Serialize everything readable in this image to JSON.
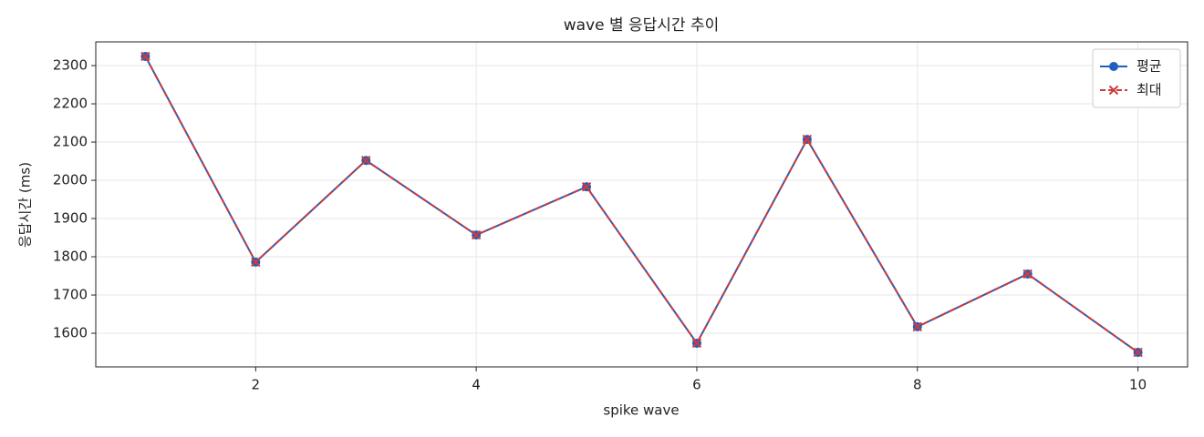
{
  "chart_data": {
    "type": "line",
    "title": "wave 별 응답시간 추이",
    "x_label": "spike wave",
    "y_label": "응답시간 (ms)",
    "x": [
      1,
      2,
      3,
      4,
      5,
      6,
      7,
      8,
      9,
      10
    ],
    "series": [
      {
        "name": "평균",
        "color": "#1f5fbf",
        "marker": "o",
        "linestyle": "solid",
        "values": [
          2324,
          1786,
          2052,
          1857,
          1983,
          1574,
          2107,
          1617,
          1755,
          1550
        ]
      },
      {
        "name": "최대",
        "color": "#d03a3a",
        "marker": "x",
        "linestyle": "dashed",
        "values": [
          2324,
          1786,
          2052,
          1857,
          1983,
          1574,
          2107,
          1617,
          1755,
          1550
        ]
      }
    ],
    "xlim": [
      0.55,
      10.45
    ],
    "xticks": [
      2,
      4,
      6,
      8,
      10
    ],
    "ylim": [
      1512,
      2362
    ],
    "yticks": [
      1600,
      1700,
      1800,
      1900,
      2000,
      2100,
      2200,
      2300
    ],
    "grid": true,
    "legend": "upper right"
  }
}
